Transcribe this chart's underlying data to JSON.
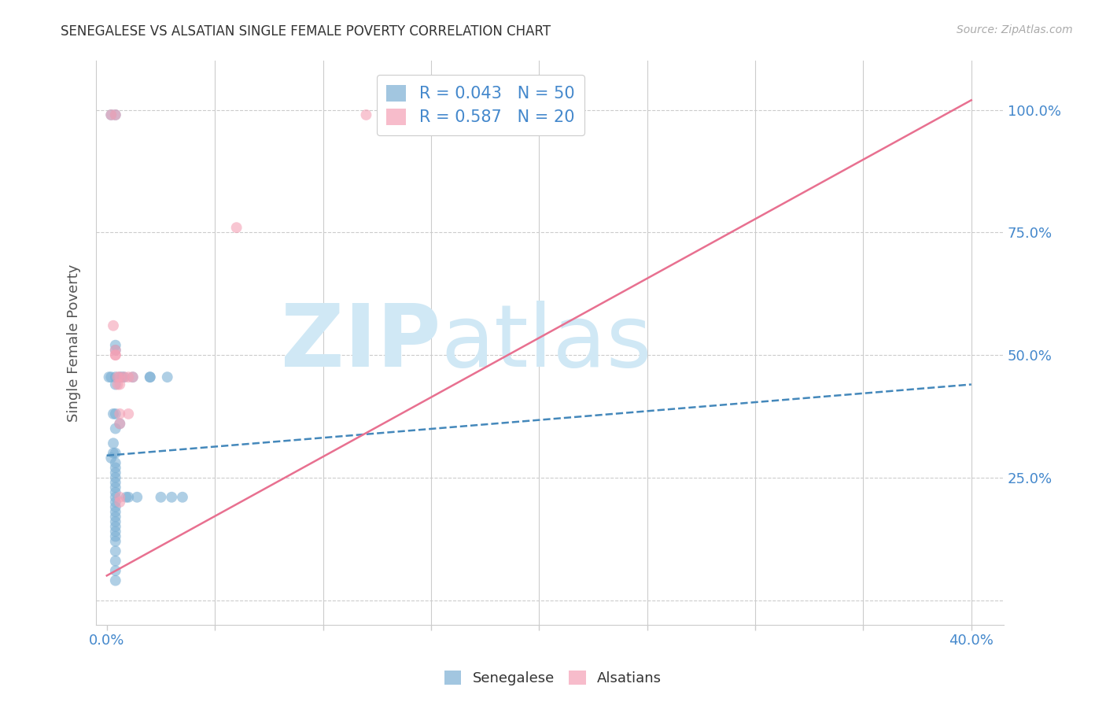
{
  "title": "SENEGALESE VS ALSATIAN SINGLE FEMALE POVERTY CORRELATION CHART",
  "source": "Source: ZipAtlas.com",
  "xlim": [
    -0.005,
    0.415
  ],
  "ylim": [
    -0.05,
    1.1
  ],
  "ylabel": "Single Female Poverty",
  "xlabel_ticks": [
    0.0,
    0.05,
    0.1,
    0.15,
    0.2,
    0.25,
    0.3,
    0.35,
    0.4
  ],
  "xlabel_tick_labels": [
    "0.0%",
    "",
    "",
    "",
    "",
    "",
    "",
    "",
    "40.0%"
  ],
  "ylabel_ticks": [
    0.0,
    0.25,
    0.5,
    0.75,
    1.0
  ],
  "ylabel_tick_labels": [
    "",
    "25.0%",
    "50.0%",
    "75.0%",
    "100.0%"
  ],
  "senegalese_points": [
    [
      0.002,
      0.99
    ],
    [
      0.004,
      0.99
    ],
    [
      0.002,
      0.455
    ],
    [
      0.003,
      0.38
    ],
    [
      0.003,
      0.32
    ],
    [
      0.003,
      0.3
    ],
    [
      0.004,
      0.52
    ],
    [
      0.004,
      0.51
    ],
    [
      0.004,
      0.455
    ],
    [
      0.004,
      0.44
    ],
    [
      0.004,
      0.38
    ],
    [
      0.004,
      0.35
    ],
    [
      0.004,
      0.3
    ],
    [
      0.004,
      0.28
    ],
    [
      0.004,
      0.27
    ],
    [
      0.004,
      0.26
    ],
    [
      0.004,
      0.25
    ],
    [
      0.004,
      0.24
    ],
    [
      0.004,
      0.23
    ],
    [
      0.004,
      0.22
    ],
    [
      0.004,
      0.21
    ],
    [
      0.004,
      0.2
    ],
    [
      0.004,
      0.19
    ],
    [
      0.004,
      0.18
    ],
    [
      0.004,
      0.17
    ],
    [
      0.004,
      0.16
    ],
    [
      0.004,
      0.15
    ],
    [
      0.004,
      0.14
    ],
    [
      0.004,
      0.13
    ],
    [
      0.004,
      0.12
    ],
    [
      0.004,
      0.1
    ],
    [
      0.004,
      0.08
    ],
    [
      0.004,
      0.06
    ],
    [
      0.004,
      0.04
    ],
    [
      0.006,
      0.455
    ],
    [
      0.006,
      0.36
    ],
    [
      0.007,
      0.455
    ],
    [
      0.008,
      0.455
    ],
    [
      0.009,
      0.21
    ],
    [
      0.01,
      0.21
    ],
    [
      0.012,
      0.455
    ],
    [
      0.014,
      0.21
    ],
    [
      0.02,
      0.455
    ],
    [
      0.02,
      0.455
    ],
    [
      0.025,
      0.21
    ],
    [
      0.028,
      0.455
    ],
    [
      0.03,
      0.21
    ],
    [
      0.035,
      0.21
    ],
    [
      0.002,
      0.29
    ],
    [
      0.001,
      0.455
    ]
  ],
  "alsatian_points": [
    [
      0.002,
      0.99
    ],
    [
      0.004,
      0.99
    ],
    [
      0.003,
      0.56
    ],
    [
      0.004,
      0.51
    ],
    [
      0.004,
      0.5
    ],
    [
      0.004,
      0.5
    ],
    [
      0.005,
      0.455
    ],
    [
      0.005,
      0.44
    ],
    [
      0.006,
      0.455
    ],
    [
      0.006,
      0.44
    ],
    [
      0.006,
      0.38
    ],
    [
      0.006,
      0.36
    ],
    [
      0.006,
      0.21
    ],
    [
      0.006,
      0.2
    ],
    [
      0.008,
      0.455
    ],
    [
      0.01,
      0.455
    ],
    [
      0.01,
      0.38
    ],
    [
      0.012,
      0.455
    ],
    [
      0.12,
      0.99
    ],
    [
      0.06,
      0.76
    ]
  ],
  "senegalese_R": 0.043,
  "senegalese_N": 50,
  "alsatian_R": 0.587,
  "alsatian_N": 20,
  "senegalese_line_x": [
    0.0,
    0.4
  ],
  "senegalese_line_y": [
    0.295,
    0.44
  ],
  "alsatian_line_x": [
    0.0,
    0.4
  ],
  "alsatian_line_y": [
    0.05,
    1.02
  ],
  "scatter_size": 100,
  "senegalese_color": "#7bafd4",
  "alsatian_color": "#f4a0b5",
  "senegalese_edge_color": "#5a8fc4",
  "alsatian_edge_color": "#e07090",
  "senegalese_line_color": "#4488bb",
  "alsatian_line_color": "#e87090",
  "grid_color": "#cccccc",
  "grid_linestyle_h": "--",
  "grid_linestyle_v": "-",
  "background_color": "#ffffff",
  "watermark_zip": "ZIP",
  "watermark_atlas": "atlas",
  "watermark_color": "#d0e8f5",
  "title_color": "#333333",
  "axis_label_color": "#555555",
  "tick_color": "#4488cc",
  "source_color": "#aaaaaa"
}
